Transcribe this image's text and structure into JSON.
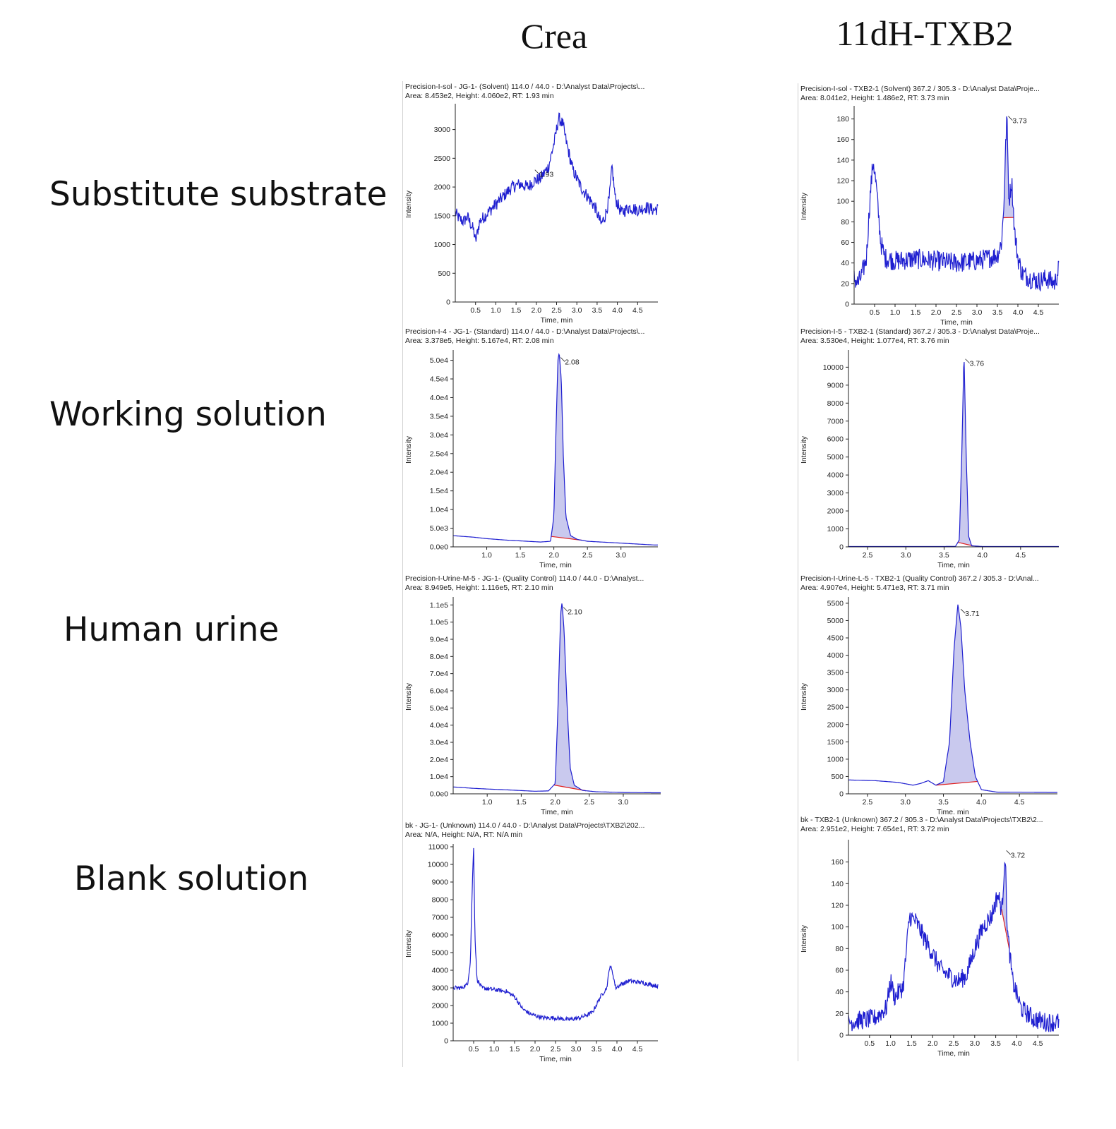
{
  "columns": [
    "Crea",
    "11dH-TXB2"
  ],
  "rows": [
    "Substitute substrate",
    "Working solution",
    "Human urine",
    "Blank solution"
  ],
  "colors": {
    "trace": "#1f1fd0",
    "fill": "#c9c9ee",
    "baseline": "#e02020",
    "axis": "#222222"
  },
  "chart_data": [
    {
      "type": "line",
      "row": "Substitute substrate",
      "column": "Crea",
      "header1": "Precision-I-sol - JG-1- (Solvent) 114.0 / 44.0 - D:\\Analyst Data\\Projects\\...",
      "header2": "Area: 8.453e2, Height: 4.060e2, RT: 1.93 min",
      "xlabel": "Time, min",
      "ylabel": "Intensity",
      "xlim": [
        0,
        5.0
      ],
      "ylim": [
        0,
        3400
      ],
      "xticks": [
        0.5,
        1.0,
        1.5,
        2.0,
        2.5,
        3.0,
        3.5,
        4.0,
        4.5
      ],
      "yticks": [
        0,
        500,
        1000,
        1500,
        2000,
        2500,
        3000
      ],
      "ytick_labels": [
        "0",
        "500",
        "1000",
        "1500",
        "2000",
        "2500",
        "3000"
      ],
      "peak_label": "1.93",
      "peak_rt": 1.93,
      "label_y": 2250,
      "points": [
        [
          0,
          1550
        ],
        [
          0.1,
          1450
        ],
        [
          0.2,
          1400
        ],
        [
          0.3,
          1480
        ],
        [
          0.45,
          1250
        ],
        [
          0.5,
          1050
        ],
        [
          0.6,
          1400
        ],
        [
          0.8,
          1550
        ],
        [
          1.0,
          1700
        ],
        [
          1.2,
          1850
        ],
        [
          1.4,
          2000
        ],
        [
          1.6,
          2050
        ],
        [
          1.8,
          2000
        ],
        [
          1.93,
          2100
        ],
        [
          2.1,
          2150
        ],
        [
          2.3,
          2350
        ],
        [
          2.45,
          2800
        ],
        [
          2.55,
          3200
        ],
        [
          2.65,
          3100
        ],
        [
          2.75,
          2750
        ],
        [
          2.9,
          2300
        ],
        [
          3.1,
          2000
        ],
        [
          3.3,
          1800
        ],
        [
          3.45,
          1650
        ],
        [
          3.6,
          1350
        ],
        [
          3.7,
          1500
        ],
        [
          3.8,
          1800
        ],
        [
          3.87,
          2350
        ],
        [
          3.95,
          1800
        ],
        [
          4.1,
          1550
        ],
        [
          4.3,
          1650
        ],
        [
          4.5,
          1600
        ],
        [
          4.7,
          1650
        ],
        [
          4.9,
          1600
        ],
        [
          5.0,
          1620
        ]
      ],
      "noise": 110,
      "shaded": null
    },
    {
      "type": "line",
      "row": "Substitute substrate",
      "column": "11dH-TXB2",
      "header1": "Precision-I-sol - TXB2-1 (Solvent) 367.2 / 305.3 - D:\\Analyst Data\\Proje...",
      "header2": "Area: 8.041e2, Height: 1.486e2, RT: 3.73 min",
      "xlabel": "Time, min",
      "ylabel": "Intensity",
      "xlim": [
        0,
        5.0
      ],
      "ylim": [
        0,
        190
      ],
      "xticks": [
        0.5,
        1.0,
        1.5,
        2.0,
        2.5,
        3.0,
        3.5,
        4.0,
        4.5
      ],
      "yticks": [
        0,
        20,
        40,
        60,
        80,
        100,
        120,
        140,
        160,
        180
      ],
      "ytick_labels": [
        "0",
        "20",
        "40",
        "60",
        "80",
        "100",
        "120",
        "140",
        "160",
        "180"
      ],
      "peak_label": "3.73",
      "peak_rt": 3.73,
      "label_y": 180,
      "points": [
        [
          0,
          25
        ],
        [
          0.1,
          20
        ],
        [
          0.2,
          30
        ],
        [
          0.3,
          45
        ],
        [
          0.4,
          110
        ],
        [
          0.47,
          140
        ],
        [
          0.55,
          110
        ],
        [
          0.65,
          60
        ],
        [
          0.75,
          45
        ],
        [
          1.0,
          42
        ],
        [
          1.5,
          44
        ],
        [
          2.0,
          42
        ],
        [
          2.5,
          40
        ],
        [
          3.0,
          42
        ],
        [
          3.3,
          45
        ],
        [
          3.5,
          48
        ],
        [
          3.6,
          60
        ],
        [
          3.65,
          90
        ],
        [
          3.73,
          185
        ],
        [
          3.78,
          100
        ],
        [
          3.85,
          120
        ],
        [
          3.92,
          70
        ],
        [
          4.0,
          45
        ],
        [
          4.1,
          30
        ],
        [
          4.3,
          25
        ],
        [
          4.5,
          22
        ],
        [
          4.7,
          25
        ],
        [
          4.9,
          20
        ],
        [
          5.0,
          35
        ]
      ],
      "noise": 10,
      "shaded": [
        3.64,
        3.9
      ]
    },
    {
      "type": "line",
      "row": "Working solution",
      "column": "Crea",
      "header1": "Precision-I-4 - JG-1- (Standard) 114.0 / 44.0 - D:\\Analyst Data\\Projects\\...",
      "header2": "Area: 3.378e5, Height: 5.167e4, RT: 2.08 min",
      "xlabel": "Time, min",
      "ylabel": "Intensity",
      "xlim": [
        0.5,
        3.55
      ],
      "ylim": [
        0,
        52000
      ],
      "xticks": [
        1.0,
        1.5,
        2.0,
        2.5,
        3.0
      ],
      "yticks": [
        0,
        5000,
        10000,
        15000,
        20000,
        25000,
        30000,
        35000,
        40000,
        45000,
        50000
      ],
      "ytick_labels": [
        "0.0e0",
        "5.0e3",
        "1.0e4",
        "1.5e4",
        "2.0e4",
        "2.5e4",
        "3.0e4",
        "3.5e4",
        "4.0e4",
        "4.5e4",
        "5.0e4"
      ],
      "peak_label": "2.08",
      "peak_rt": 2.08,
      "label_y": 50000,
      "points": [
        [
          0.5,
          3000
        ],
        [
          0.8,
          2600
        ],
        [
          1.0,
          2200
        ],
        [
          1.3,
          1800
        ],
        [
          1.6,
          1500
        ],
        [
          1.8,
          1300
        ],
        [
          1.95,
          1500
        ],
        [
          2.0,
          8000
        ],
        [
          2.03,
          30000
        ],
        [
          2.06,
          50000
        ],
        [
          2.08,
          52000
        ],
        [
          2.11,
          45000
        ],
        [
          2.14,
          25000
        ],
        [
          2.18,
          8000
        ],
        [
          2.25,
          3000
        ],
        [
          2.35,
          2000
        ],
        [
          2.5,
          1500
        ],
        [
          2.8,
          1200
        ],
        [
          3.1,
          900
        ],
        [
          3.3,
          700
        ],
        [
          3.5,
          500
        ]
      ],
      "noise": 0,
      "shaded": [
        1.96,
        2.42
      ]
    },
    {
      "type": "line",
      "row": "Working solution",
      "column": "11dH-TXB2",
      "header1": "Precision-I-5 - TXB2-1 (Standard) 367.2 / 305.3 - D:\\Analyst Data\\Proje...",
      "header2": "Area: 3.530e4, Height: 1.077e4, RT: 3.76 min",
      "xlabel": "Time, min",
      "ylabel": "Intensity",
      "xlim": [
        2.25,
        5.0
      ],
      "ylim": [
        0,
        10800
      ],
      "xticks": [
        2.5,
        3.0,
        3.5,
        4.0,
        4.5
      ],
      "yticks": [
        0,
        1000,
        2000,
        3000,
        4000,
        5000,
        6000,
        7000,
        8000,
        9000,
        10000
      ],
      "ytick_labels": [
        "0",
        "1000",
        "2000",
        "3000",
        "4000",
        "5000",
        "6000",
        "7000",
        "8000",
        "9000",
        "10000"
      ],
      "peak_label": "3.76",
      "peak_rt": 3.76,
      "label_y": 10300,
      "points": [
        [
          2.25,
          20
        ],
        [
          3.5,
          20
        ],
        [
          3.65,
          30
        ],
        [
          3.7,
          400
        ],
        [
          3.73,
          5000
        ],
        [
          3.76,
          10770
        ],
        [
          3.79,
          5000
        ],
        [
          3.82,
          600
        ],
        [
          3.86,
          60
        ],
        [
          4.0,
          20
        ],
        [
          5.0,
          20
        ]
      ],
      "noise": 0,
      "shaded": [
        3.68,
        3.88
      ]
    },
    {
      "type": "line",
      "row": "Human urine",
      "column": "Crea",
      "header1": "Precision-I-Urine-M-5 - JG-1- (Quality Control) 114.0 / 44.0 - D:\\Analyst...",
      "header2": "Area: 8.949e5, Height: 1.116e5, RT: 2.10 min",
      "xlabel": "Time, min",
      "ylabel": "Intensity",
      "xlim": [
        0.5,
        3.55
      ],
      "ylim": [
        0,
        113000
      ],
      "xticks": [
        1.0,
        1.5,
        2.0,
        2.5,
        3.0
      ],
      "yticks": [
        0,
        10000,
        20000,
        30000,
        40000,
        50000,
        60000,
        70000,
        80000,
        90000,
        100000,
        110000
      ],
      "ytick_labels": [
        "0.0e0",
        "1.0e4",
        "2.0e4",
        "3.0e4",
        "4.0e4",
        "5.0e4",
        "6.0e4",
        "7.0e4",
        "8.0e4",
        "9.0e4",
        "1.0e5",
        "1.1e5"
      ],
      "peak_label": "2.10",
      "peak_rt": 2.1,
      "label_y": 107000,
      "points": [
        [
          0.5,
          4000
        ],
        [
          0.8,
          3200
        ],
        [
          1.0,
          2800
        ],
        [
          1.3,
          2300
        ],
        [
          1.5,
          1900
        ],
        [
          1.7,
          1500
        ],
        [
          1.9,
          1700
        ],
        [
          2.0,
          6000
        ],
        [
          2.04,
          50000
        ],
        [
          2.08,
          105000
        ],
        [
          2.1,
          111600
        ],
        [
          2.13,
          95000
        ],
        [
          2.17,
          55000
        ],
        [
          2.22,
          15000
        ],
        [
          2.28,
          5000
        ],
        [
          2.4,
          2000
        ],
        [
          2.6,
          1200
        ],
        [
          3.0,
          800
        ],
        [
          3.5,
          600
        ]
      ],
      "noise": 0,
      "shaded": [
        1.98,
        2.45
      ]
    },
    {
      "type": "line",
      "row": "Human urine",
      "column": "11dH-TXB2",
      "header1": "Precision-I-Urine-L-5 - TXB2-1 (Quality Control) 367.2 / 305.3 - D:\\Anal...",
      "header2": "Area: 4.907e4, Height: 5.471e3, RT: 3.71 min",
      "xlabel": "Time, min",
      "ylabel": "Intensity",
      "xlim": [
        2.25,
        5.0
      ],
      "ylim": [
        0,
        5600
      ],
      "xticks": [
        2.5,
        3.0,
        3.5,
        4.0,
        4.5
      ],
      "yticks": [
        0,
        500,
        1000,
        1500,
        2000,
        2500,
        3000,
        3500,
        4000,
        4500,
        5000,
        5500
      ],
      "ytick_labels": [
        "0",
        "500",
        "1000",
        "1500",
        "2000",
        "2500",
        "3000",
        "3500",
        "4000",
        "4500",
        "5000",
        "5500"
      ],
      "peak_label": "3.71",
      "peak_rt": 3.71,
      "label_y": 5250,
      "points": [
        [
          2.25,
          400
        ],
        [
          2.6,
          380
        ],
        [
          2.9,
          330
        ],
        [
          3.1,
          250
        ],
        [
          3.2,
          300
        ],
        [
          3.3,
          380
        ],
        [
          3.4,
          250
        ],
        [
          3.5,
          350
        ],
        [
          3.58,
          1500
        ],
        [
          3.64,
          4200
        ],
        [
          3.69,
          5470
        ],
        [
          3.73,
          4800
        ],
        [
          3.78,
          3000
        ],
        [
          3.85,
          1500
        ],
        [
          3.92,
          500
        ],
        [
          4.0,
          120
        ],
        [
          4.2,
          50
        ],
        [
          5.0,
          40
        ]
      ],
      "noise": 0,
      "shaded": [
        3.4,
        3.95
      ]
    },
    {
      "type": "line",
      "row": "Blank solution",
      "column": "Crea",
      "header1": "bk - JG-1- (Unknown) 114.0 / 44.0 - D:\\Analyst Data\\Projects\\TXB2\\202...",
      "header2": "Area: N/A, Height: N/A, RT: N/A min",
      "xlabel": "Time, min",
      "ylabel": "Intensity",
      "xlim": [
        0,
        5.0
      ],
      "ylim": [
        0,
        11000
      ],
      "xticks": [
        0.5,
        1.0,
        1.5,
        2.0,
        2.5,
        3.0,
        3.5,
        4.0,
        4.5
      ],
      "yticks": [
        0,
        1000,
        2000,
        3000,
        4000,
        5000,
        6000,
        7000,
        8000,
        9000,
        10000,
        11000
      ],
      "ytick_labels": [
        "0",
        "1000",
        "2000",
        "3000",
        "4000",
        "5000",
        "6000",
        "7000",
        "8000",
        "9000",
        "10000",
        "11000"
      ],
      "peak_label": "",
      "peak_rt": null,
      "label_y": null,
      "points": [
        [
          0,
          3000
        ],
        [
          0.2,
          3000
        ],
        [
          0.35,
          3200
        ],
        [
          0.42,
          4500
        ],
        [
          0.47,
          9000
        ],
        [
          0.5,
          11000
        ],
        [
          0.53,
          6000
        ],
        [
          0.58,
          3500
        ],
        [
          0.7,
          3000
        ],
        [
          1.0,
          2900
        ],
        [
          1.3,
          2800
        ],
        [
          1.5,
          2500
        ],
        [
          1.7,
          1800
        ],
        [
          1.9,
          1500
        ],
        [
          2.2,
          1300
        ],
        [
          2.5,
          1300
        ],
        [
          2.8,
          1200
        ],
        [
          3.1,
          1300
        ],
        [
          3.4,
          1600
        ],
        [
          3.6,
          2500
        ],
        [
          3.75,
          3000
        ],
        [
          3.83,
          4300
        ],
        [
          3.9,
          3800
        ],
        [
          3.97,
          3000
        ],
        [
          4.1,
          3200
        ],
        [
          4.3,
          3400
        ],
        [
          4.6,
          3300
        ],
        [
          5.0,
          3100
        ]
      ],
      "noise": 120,
      "shaded": null
    },
    {
      "type": "line",
      "row": "Blank solution",
      "column": "11dH-TXB2",
      "header1": "bk - TXB2-1 (Unknown) 367.2 / 305.3 - D:\\Analyst Data\\Projects\\TXB2\\2...",
      "header2": "Area: 2.951e2, Height: 7.654e1, RT: 3.72 min",
      "xlabel": "Time, min",
      "ylabel": "Intensity",
      "xlim": [
        0,
        5.0
      ],
      "ylim": [
        0,
        178
      ],
      "xticks": [
        0.5,
        1.0,
        1.5,
        2.0,
        2.5,
        3.0,
        3.5,
        4.0,
        4.5
      ],
      "yticks": [
        0,
        20,
        40,
        60,
        80,
        100,
        120,
        140,
        160
      ],
      "ytick_labels": [
        "0",
        "20",
        "40",
        "60",
        "80",
        "100",
        "120",
        "140",
        "160"
      ],
      "peak_label": "3.72",
      "peak_rt": 3.72,
      "label_y": 168,
      "points": [
        [
          0,
          12
        ],
        [
          0.3,
          14
        ],
        [
          0.6,
          15
        ],
        [
          0.9,
          25
        ],
        [
          1.0,
          50
        ],
        [
          1.1,
          35
        ],
        [
          1.3,
          45
        ],
        [
          1.45,
          110
        ],
        [
          1.6,
          105
        ],
        [
          1.8,
          90
        ],
        [
          2.0,
          75
        ],
        [
          2.2,
          60
        ],
        [
          2.4,
          55
        ],
        [
          2.6,
          50
        ],
        [
          2.8,
          55
        ],
        [
          3.0,
          80
        ],
        [
          3.2,
          100
        ],
        [
          3.4,
          110
        ],
        [
          3.55,
          130
        ],
        [
          3.65,
          115
        ],
        [
          3.72,
          170
        ],
        [
          3.78,
          95
        ],
        [
          3.9,
          50
        ],
        [
          4.1,
          25
        ],
        [
          4.4,
          15
        ],
        [
          4.7,
          12
        ],
        [
          5.0,
          12
        ]
      ],
      "noise": 9,
      "shaded": [
        3.64,
        3.82
      ]
    }
  ]
}
